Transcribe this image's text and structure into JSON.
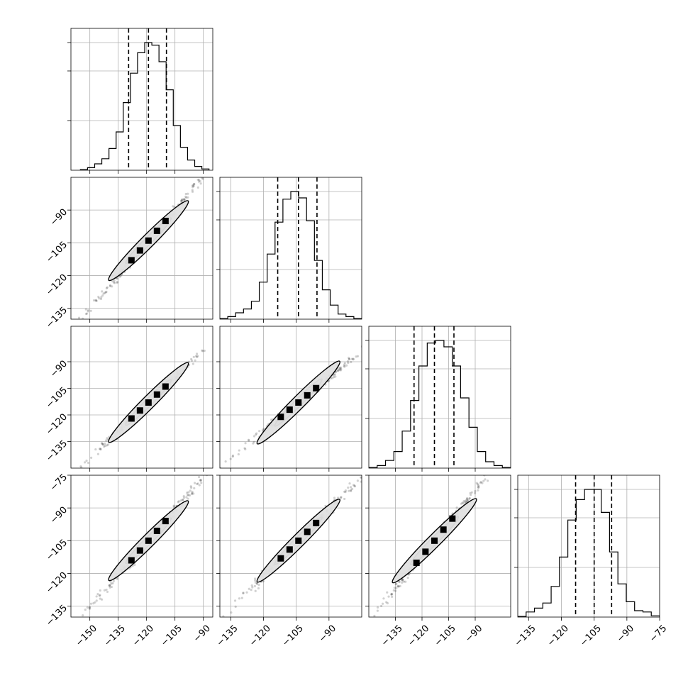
{
  "chart_data": {
    "type": "corner",
    "n_params": 4,
    "quantile_levels": [
      0.16,
      0.5,
      0.84
    ],
    "grid": true,
    "colors": {
      "line": "#000000",
      "grid": "#b0b0b0",
      "fill_light": "#e0e0e0",
      "fill_mid": "#a8a8a8",
      "fill_dark": "#000000"
    },
    "parameters": [
      {
        "range": [
          -160,
          -85
        ],
        "histogram_range": [
          -155,
          -87
        ],
        "median": -119,
        "q16": -129.5,
        "q84": -109.5,
        "x_ticks": [
          -150,
          -135,
          -120,
          -105,
          -90
        ],
        "x_tick_labels": [
          "−150",
          "−135",
          "−120",
          "−105",
          "−90"
        ]
      },
      {
        "range": [
          -140,
          -75
        ],
        "histogram_range": [
          -140,
          -75
        ],
        "median": -104,
        "q16": -113.5,
        "q84": -95.5,
        "x_ticks": [
          -135,
          -120,
          -105,
          -90
        ],
        "x_tick_labels": [
          "−135",
          "−120",
          "−105",
          "−90"
        ],
        "y_ticks": [
          -135,
          -120,
          -105,
          -90
        ],
        "y_tick_labels": [
          "−135",
          "−120",
          "−105",
          "−90"
        ]
      },
      {
        "range": [
          -150,
          -70
        ],
        "histogram_range": [
          -150,
          -70
        ],
        "median": -113,
        "q16": -124.5,
        "q84": -102,
        "x_ticks": [
          -135,
          -120,
          -105,
          -90
        ],
        "x_tick_labels": [
          "−135",
          "−120",
          "−105",
          "−90"
        ],
        "y_ticks": [
          -135,
          -120,
          -105,
          -90
        ],
        "y_tick_labels": [
          "−135",
          "−120",
          "−105",
          "−90"
        ]
      },
      {
        "range": [
          -140,
          -75
        ],
        "histogram_range": [
          -140,
          -75
        ],
        "median": -105,
        "q16": -113.5,
        "q84": -97,
        "x_ticks": [
          -135,
          -120,
          -105,
          -90,
          -75
        ],
        "x_tick_labels": [
          "−135",
          "−120",
          "−105",
          "−90",
          "−75"
        ],
        "y_ticks": [
          -135,
          -120,
          -105,
          -90,
          -75
        ],
        "y_tick_labels": [
          "−135",
          "−120",
          "−105",
          "−90",
          "−75"
        ]
      }
    ],
    "histograms": [
      [
        0.005,
        0.02,
        0.05,
        0.09,
        0.17,
        0.3,
        0.53,
        0.76,
        0.92,
        1.0,
        0.98,
        0.85,
        0.63,
        0.35,
        0.18,
        0.08,
        0.03,
        0.01
      ],
      [
        0.005,
        0.02,
        0.05,
        0.08,
        0.14,
        0.29,
        0.51,
        0.76,
        0.94,
        1.0,
        0.95,
        0.77,
        0.46,
        0.23,
        0.11,
        0.04,
        0.02,
        0.005
      ],
      [
        0.005,
        0.02,
        0.06,
        0.13,
        0.29,
        0.53,
        0.8,
        0.98,
        1.0,
        0.95,
        0.8,
        0.55,
        0.32,
        0.13,
        0.05,
        0.02,
        0.005
      ],
      [
        0.005,
        0.04,
        0.07,
        0.11,
        0.24,
        0.47,
        0.76,
        0.92,
        1.0,
        1.0,
        0.82,
        0.51,
        0.26,
        0.12,
        0.05,
        0.04,
        0.01
      ]
    ],
    "contour_levels": [
      0.5,
      0.9
    ]
  }
}
